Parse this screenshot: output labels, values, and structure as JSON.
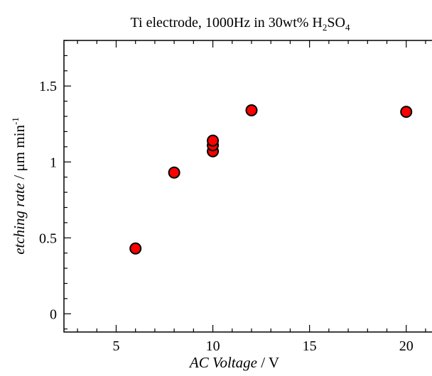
{
  "chart_data": {
    "type": "scatter",
    "title": {
      "before_sub1": "Ti electrode, 1000Hz in 30wt% H",
      "sub1": "2",
      "middle": "SO",
      "sub2": "4"
    },
    "xlabel": {
      "italic": "AC Voltage",
      "rest": " / V"
    },
    "ylabel": {
      "italic": "etching rate",
      "rest": " / μm min",
      "sup": "-1"
    },
    "xlim": [
      2.3,
      21.7
    ],
    "ylim": [
      -0.12,
      1.8
    ],
    "x_ticks": [
      5,
      10,
      15,
      20
    ],
    "x_tick_labels": [
      "5",
      "10",
      "15",
      "20"
    ],
    "y_ticks": [
      0,
      0.5,
      1,
      1.5
    ],
    "y_tick_labels": [
      "0",
      "0.5",
      "1",
      "1.5"
    ],
    "grid": false,
    "marker": {
      "fill": "#ff0000",
      "stroke": "#000000"
    },
    "points": [
      {
        "x": 6,
        "y": 0.43
      },
      {
        "x": 8,
        "y": 0.93
      },
      {
        "x": 10,
        "y": 1.07
      },
      {
        "x": 10,
        "y": 1.11
      },
      {
        "x": 10,
        "y": 1.14
      },
      {
        "x": 12,
        "y": 1.34
      },
      {
        "x": 20,
        "y": 1.33
      }
    ]
  }
}
